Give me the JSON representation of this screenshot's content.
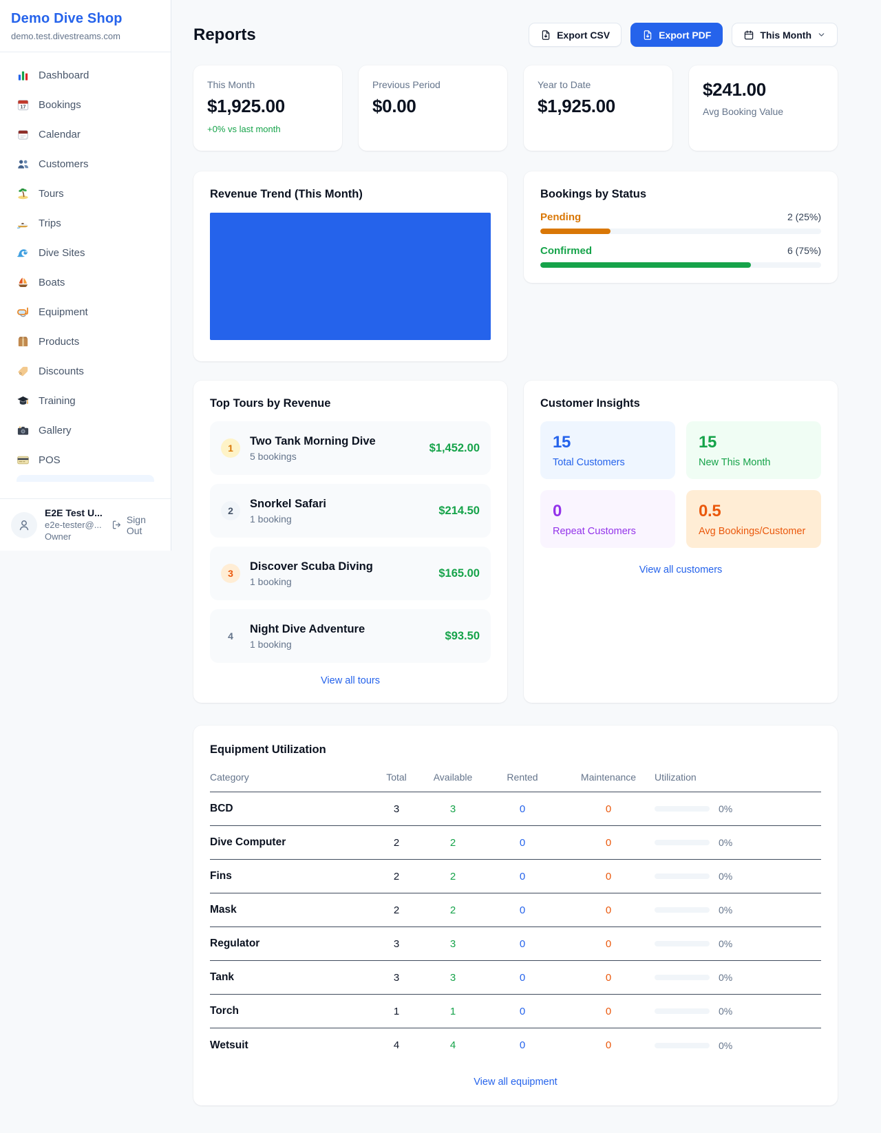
{
  "app": {
    "accent": "#2563eb",
    "page_bg": "#f7f9fb"
  },
  "sidebar": {
    "title": "Demo Dive Shop",
    "subdomain": "demo.test.divestreams.com",
    "items": [
      {
        "label": "Dashboard"
      },
      {
        "label": "Bookings"
      },
      {
        "label": "Calendar"
      },
      {
        "label": "Customers"
      },
      {
        "label": "Tours"
      },
      {
        "label": "Trips"
      },
      {
        "label": "Dive Sites"
      },
      {
        "label": "Boats"
      },
      {
        "label": "Equipment"
      },
      {
        "label": "Products"
      },
      {
        "label": "Discounts"
      },
      {
        "label": "Training"
      },
      {
        "label": "Gallery"
      },
      {
        "label": "POS"
      }
    ],
    "user": {
      "name": "E2E Test U...",
      "email": "e2e-tester@...",
      "role": "Owner",
      "sign_out": "Sign Out"
    }
  },
  "header": {
    "title": "Reports",
    "export_csv": "Export CSV",
    "export_pdf": "Export PDF",
    "period": "This Month"
  },
  "stats": [
    {
      "label": "This Month",
      "value": "$1,925.00",
      "delta": "+0% vs last month"
    },
    {
      "label": "Previous Period",
      "value": "$0.00"
    },
    {
      "label": "Year to Date",
      "value": "$1,925.00"
    },
    {
      "label": "Avg Booking Value",
      "value": "$241.00"
    }
  ],
  "revenue_trend": {
    "title": "Revenue Trend (This Month)",
    "bar_color": "#2563eb"
  },
  "bookings_by_status": {
    "title": "Bookings by Status",
    "rows": [
      {
        "label": "Pending",
        "count_text": "2 (25%)",
        "pct": 25,
        "color": "#d97706"
      },
      {
        "label": "Confirmed",
        "count_text": "6 (75%)",
        "pct": 75,
        "color": "#16a34a"
      }
    ]
  },
  "top_tours": {
    "title": "Top Tours by Revenue",
    "rows": [
      {
        "rank": "1",
        "name": "Two Tank Morning Dive",
        "bookings": "5 bookings",
        "revenue": "$1,452.00",
        "badge_bg": "#fef3c7",
        "badge_fg": "#d97706"
      },
      {
        "rank": "2",
        "name": "Snorkel Safari",
        "bookings": "1 booking",
        "revenue": "$214.50",
        "badge_bg": "#f1f5f9",
        "badge_fg": "#475569"
      },
      {
        "rank": "3",
        "name": "Discover Scuba Diving",
        "bookings": "1 booking",
        "revenue": "$165.00",
        "badge_bg": "#ffedd5",
        "badge_fg": "#ea580c"
      },
      {
        "rank": "4",
        "name": "Night Dive Adventure",
        "bookings": "1 booking",
        "revenue": "$93.50",
        "badge_bg": "transparent",
        "badge_fg": "#64748b"
      }
    ],
    "view_all": "View all tours"
  },
  "customer_insights": {
    "title": "Customer Insights",
    "tiles": [
      {
        "value": "15",
        "label": "Total Customers",
        "bg": "#eff6ff",
        "fg": "#2563eb"
      },
      {
        "value": "15",
        "label": "New This Month",
        "bg": "#f0fdf4",
        "fg": "#16a34a"
      },
      {
        "value": "0",
        "label": "Repeat Customers",
        "bg": "#faf5ff",
        "fg": "#9333ea"
      },
      {
        "value": "0.5",
        "label": "Avg Bookings/Customer",
        "bg": "#ffedd5",
        "fg": "#ea580c"
      }
    ],
    "view_all": "View all customers"
  },
  "equipment": {
    "title": "Equipment Utilization",
    "columns": {
      "category": "Category",
      "total": "Total",
      "available": "Available",
      "rented": "Rented",
      "maintenance": "Maintenance",
      "utilization": "Utilization"
    },
    "rows": [
      {
        "category": "BCD",
        "total": "3",
        "available": "3",
        "rented": "0",
        "maintenance": "0",
        "utilization_pct": 0,
        "utilization_text": "0%"
      },
      {
        "category": "Dive Computer",
        "total": "2",
        "available": "2",
        "rented": "0",
        "maintenance": "0",
        "utilization_pct": 0,
        "utilization_text": "0%"
      },
      {
        "category": "Fins",
        "total": "2",
        "available": "2",
        "rented": "0",
        "maintenance": "0",
        "utilization_pct": 0,
        "utilization_text": "0%"
      },
      {
        "category": "Mask",
        "total": "2",
        "available": "2",
        "rented": "0",
        "maintenance": "0",
        "utilization_pct": 0,
        "utilization_text": "0%"
      },
      {
        "category": "Regulator",
        "total": "3",
        "available": "3",
        "rented": "0",
        "maintenance": "0",
        "utilization_pct": 0,
        "utilization_text": "0%"
      },
      {
        "category": "Tank",
        "total": "3",
        "available": "3",
        "rented": "0",
        "maintenance": "0",
        "utilization_pct": 0,
        "utilization_text": "0%"
      },
      {
        "category": "Torch",
        "total": "1",
        "available": "1",
        "rented": "0",
        "maintenance": "0",
        "utilization_pct": 0,
        "utilization_text": "0%"
      },
      {
        "category": "Wetsuit",
        "total": "4",
        "available": "4",
        "rented": "0",
        "maintenance": "0",
        "utilization_pct": 0,
        "utilization_text": "0%"
      }
    ],
    "view_all": "View all equipment"
  },
  "chart_data": [
    {
      "type": "bar",
      "title": "Revenue Trend (This Month)",
      "categories": [
        "This Month"
      ],
      "values": [
        1925
      ],
      "xlabel": "",
      "ylabel": "",
      "legend": false,
      "grid": false,
      "notes": "single blue bar fills the entire plot area",
      "bar_color": "#2563eb"
    },
    {
      "type": "bar",
      "orientation": "horizontal",
      "title": "Bookings by Status",
      "categories": [
        "Pending",
        "Confirmed"
      ],
      "values": [
        2,
        6
      ],
      "percents": [
        25,
        75
      ],
      "value_labels": [
        "2 (25%)",
        "6 (75%)"
      ],
      "colors": [
        "#d97706",
        "#16a34a"
      ],
      "xlim": [
        0,
        100
      ]
    }
  ]
}
